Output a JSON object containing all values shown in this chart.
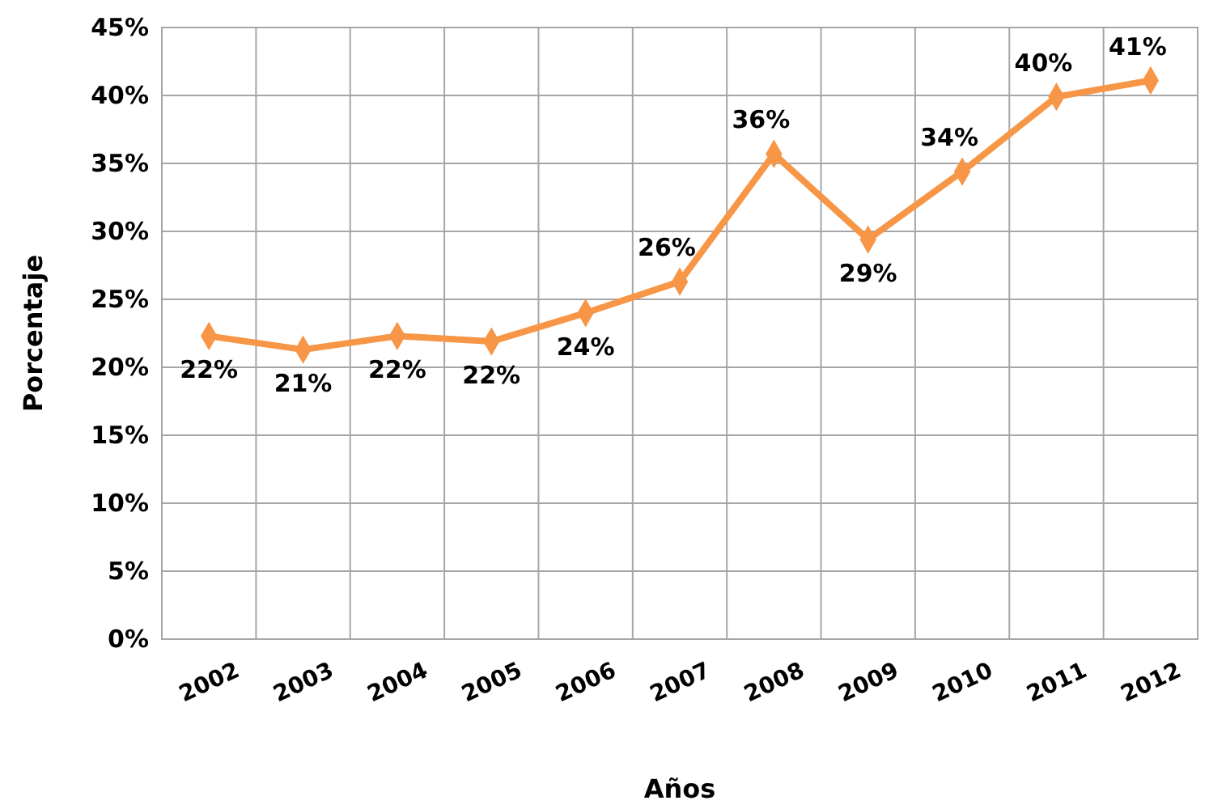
{
  "chart_data": {
    "type": "line",
    "xlabel": "Años",
    "ylabel": "Porcentaje",
    "categories": [
      "2002",
      "2003",
      "2004",
      "2005",
      "2006",
      "2007",
      "2008",
      "2009",
      "2010",
      "2011",
      "2012"
    ],
    "series": [
      {
        "color": "#f79646",
        "values": [
          22.3,
          21.3,
          22.3,
          21.9,
          24.0,
          26.3,
          35.7,
          29.4,
          34.4,
          39.9,
          41.1
        ],
        "value_labels": [
          "22%",
          "21%",
          "22%",
          "22%",
          "24%",
          "26%",
          "36%",
          "29%",
          "34%",
          "40%",
          "41%"
        ]
      }
    ],
    "ylim": [
      0,
      45
    ],
    "yticks": [
      {
        "value": 0,
        "label": "0%"
      },
      {
        "value": 5,
        "label": "5%"
      },
      {
        "value": 10,
        "label": "10%"
      },
      {
        "value": 15,
        "label": "15%"
      },
      {
        "value": 20,
        "label": "20%"
      },
      {
        "value": 25,
        "label": "25%"
      },
      {
        "value": 30,
        "label": "30%"
      },
      {
        "value": 35,
        "label": "35%"
      },
      {
        "value": 40,
        "label": "40%"
      },
      {
        "value": 45,
        "label": "45%"
      }
    ],
    "grid": true,
    "marker": "diamond",
    "line_style": "solid"
  }
}
